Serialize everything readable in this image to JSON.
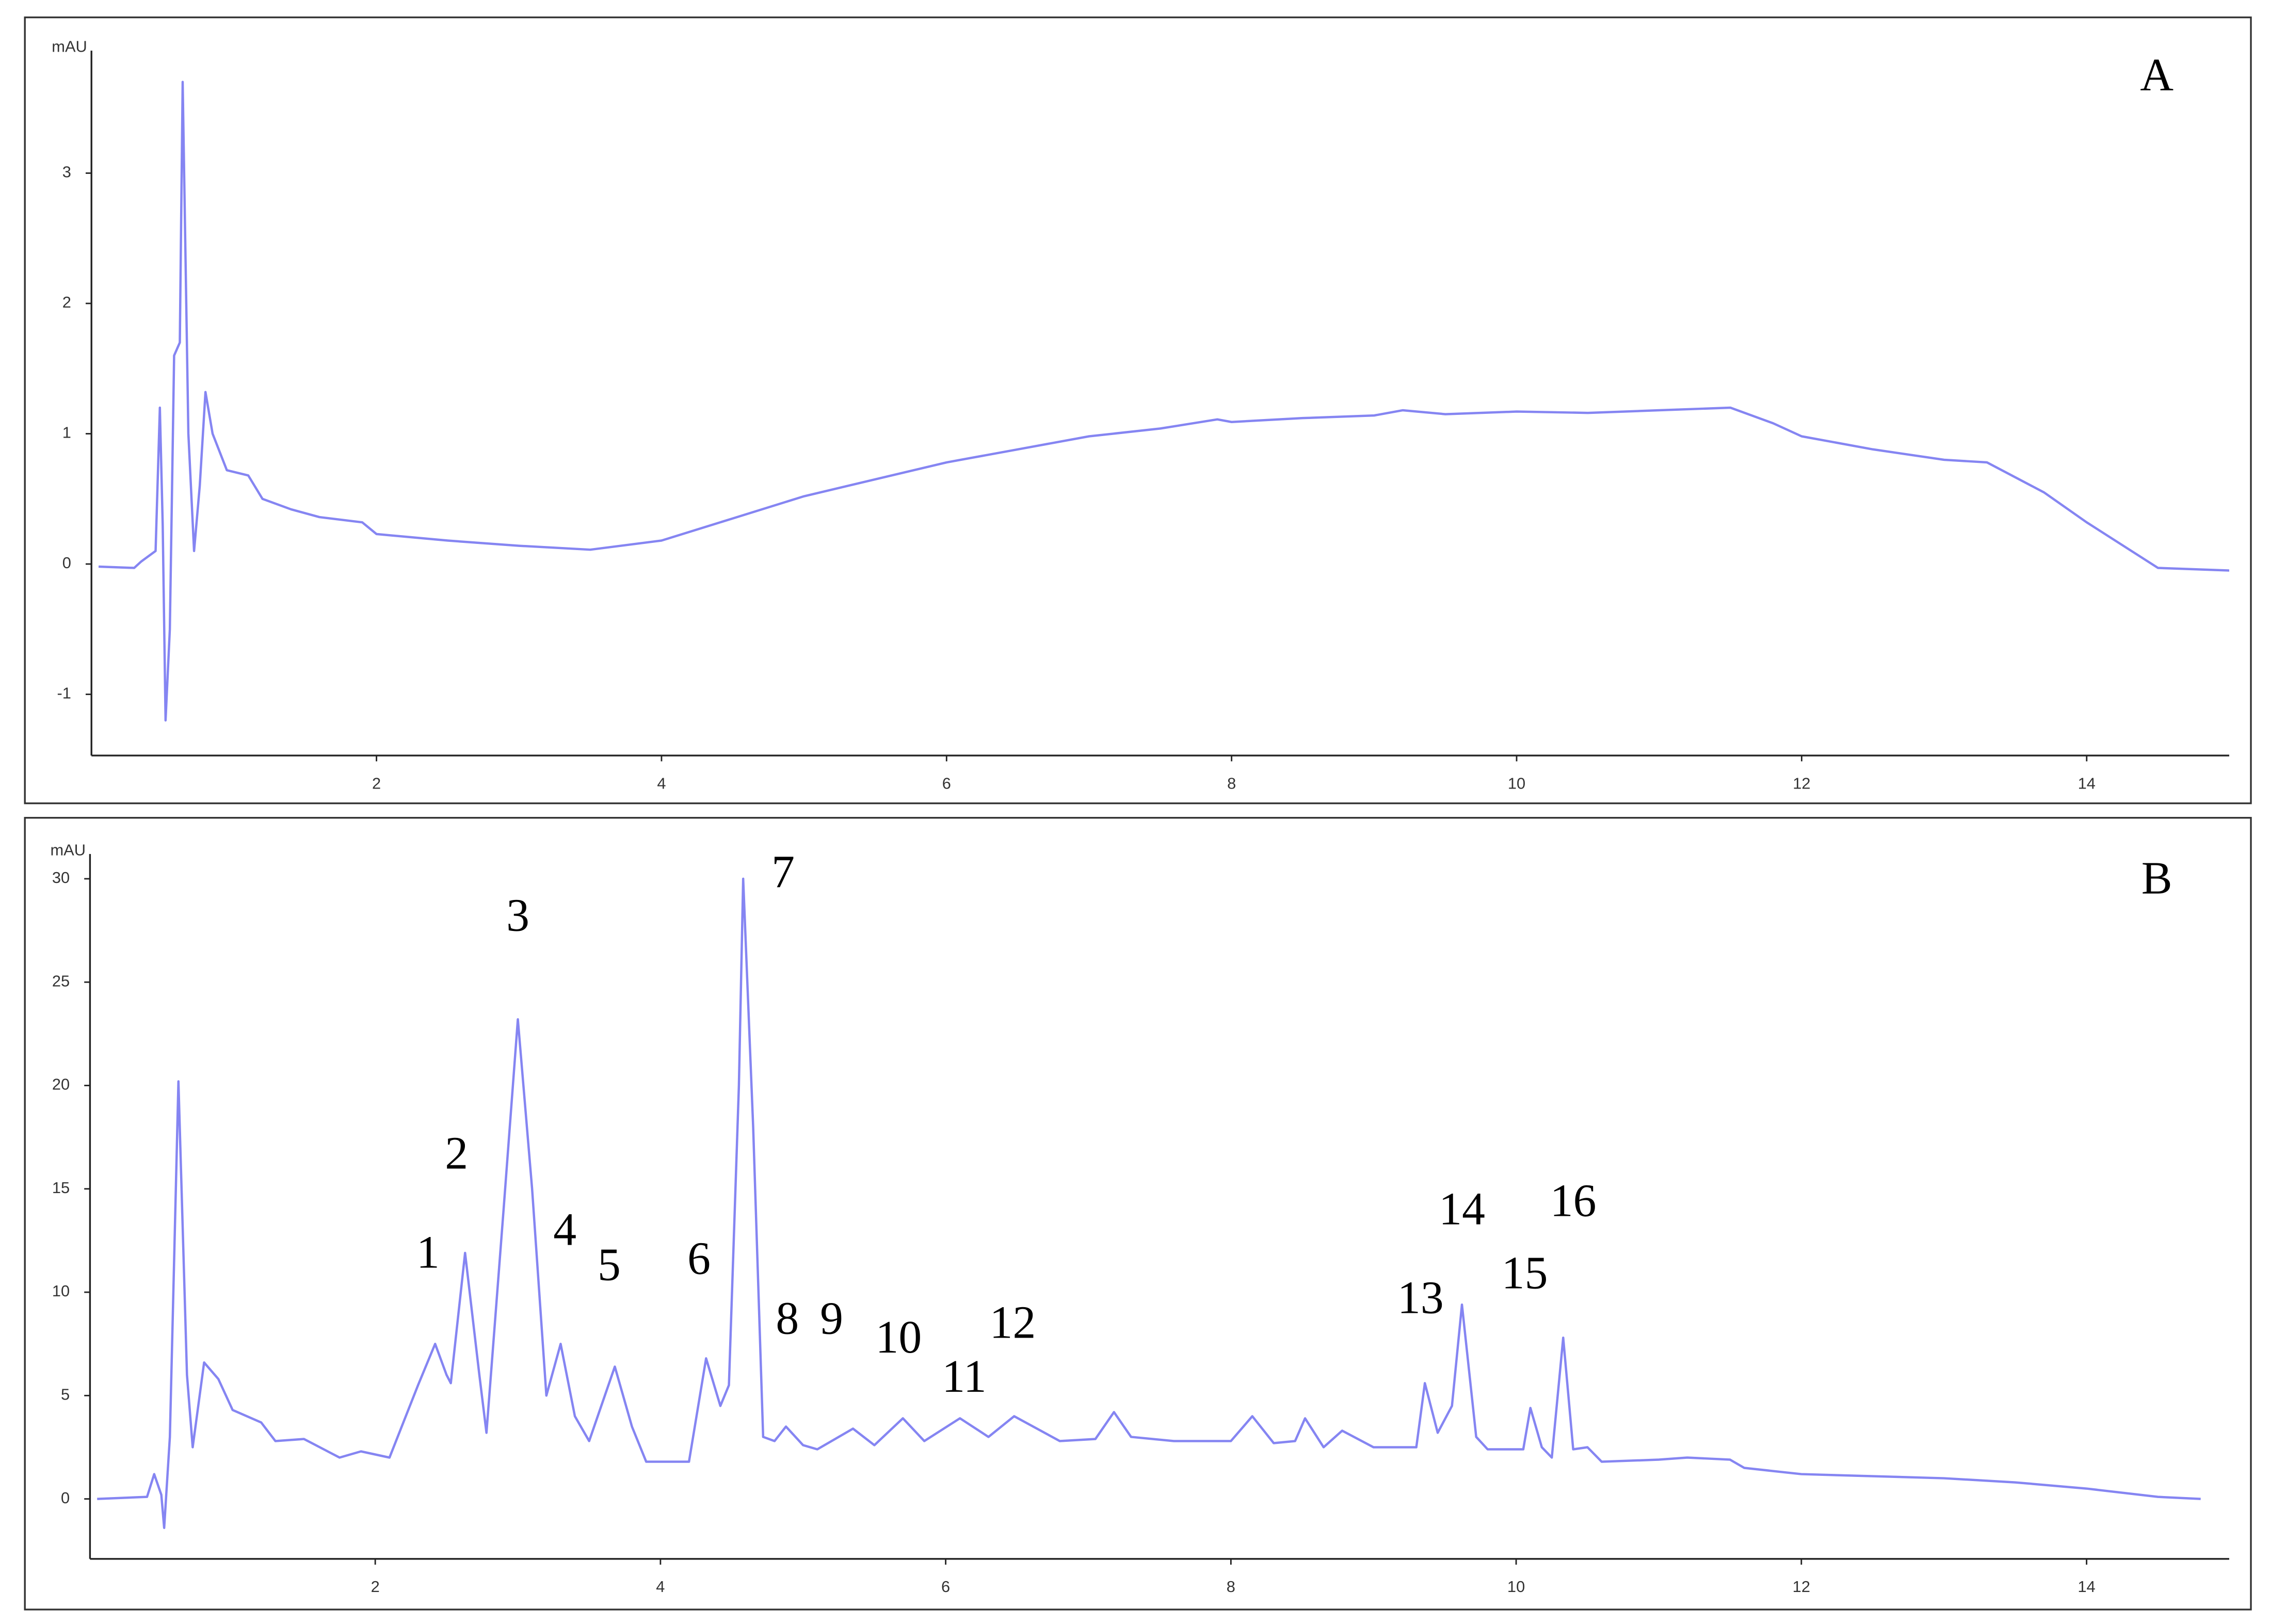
{
  "chart_data": [
    {
      "type": "line",
      "label": "A",
      "y_label": "mAU",
      "color": "#8585f2",
      "grid": false,
      "xlim": [
        0,
        15
      ],
      "ylim": [
        -1.47,
        3.94
      ],
      "xticks": [
        2,
        4,
        6,
        8,
        10,
        12,
        14
      ],
      "yticks": [
        -1,
        0,
        1,
        2,
        3
      ],
      "x": [
        0.05,
        0.3,
        0.35,
        0.45,
        0.48,
        0.5,
        0.52,
        0.55,
        0.58,
        0.62,
        0.64,
        0.68,
        0.72,
        0.76,
        0.8,
        0.85,
        0.95,
        1.1,
        1.2,
        1.4,
        1.6,
        1.9,
        2.0,
        2.5,
        3.0,
        3.5,
        4.0,
        4.5,
        5.0,
        5.5,
        6.0,
        6.5,
        7.0,
        7.5,
        7.9,
        8.0,
        8.5,
        9.0,
        9.2,
        9.5,
        10.0,
        10.5,
        11.0,
        11.5,
        11.8,
        12.0,
        12.5,
        13.0,
        13.3,
        13.7,
        14.0,
        14.5,
        15.0
      ],
      "values": [
        -0.02,
        -0.03,
        0.02,
        0.1,
        1.2,
        0.3,
        -1.2,
        -0.5,
        1.6,
        1.7,
        3.7,
        1.0,
        0.1,
        0.6,
        1.32,
        1.0,
        0.72,
        0.68,
        0.5,
        0.42,
        0.36,
        0.32,
        0.23,
        0.18,
        0.14,
        0.11,
        0.18,
        0.35,
        0.52,
        0.65,
        0.78,
        0.88,
        0.98,
        1.04,
        1.11,
        1.09,
        1.12,
        1.14,
        1.18,
        1.15,
        1.17,
        1.16,
        1.18,
        1.2,
        1.08,
        0.98,
        0.88,
        0.8,
        0.78,
        0.55,
        0.32,
        -0.03,
        -0.05
      ],
      "annotations": []
    },
    {
      "type": "line",
      "label": "B",
      "y_label": "mAU",
      "color": "#8585f2",
      "grid": false,
      "xlim": [
        0,
        15
      ],
      "ylim": [
        -2.9,
        31.2
      ],
      "xticks": [
        2,
        4,
        6,
        8,
        10,
        12,
        14
      ],
      "yticks": [
        0,
        5,
        10,
        15,
        20,
        25,
        30
      ],
      "x": [
        0.05,
        0.4,
        0.45,
        0.5,
        0.52,
        0.56,
        0.62,
        0.68,
        0.72,
        0.8,
        0.9,
        1.0,
        1.2,
        1.3,
        1.5,
        1.75,
        1.9,
        2.1,
        2.3,
        2.42,
        2.5,
        2.53,
        2.63,
        2.73,
        2.78,
        2.9,
        3.0,
        3.1,
        3.2,
        3.3,
        3.4,
        3.5,
        3.68,
        3.8,
        3.9,
        4.2,
        4.32,
        4.42,
        4.48,
        4.55,
        4.58,
        4.65,
        4.72,
        4.8,
        4.88,
        5.0,
        5.1,
        5.35,
        5.5,
        5.7,
        5.85,
        6.1,
        6.3,
        6.48,
        6.8,
        7.05,
        7.18,
        7.3,
        7.6,
        8.0,
        8.15,
        8.3,
        8.45,
        8.52,
        8.65,
        8.78,
        9.0,
        9.3,
        9.36,
        9.45,
        9.55,
        9.62,
        9.72,
        9.8,
        10.05,
        10.1,
        10.18,
        10.25,
        10.33,
        10.4,
        10.5,
        10.6,
        11.0,
        11.2,
        11.5,
        11.6,
        12.0,
        13.0,
        13.5,
        14.0,
        14.5,
        14.8
      ],
      "values": [
        0,
        0.1,
        1.2,
        0.2,
        -1.4,
        3,
        20.2,
        6,
        2.5,
        6.6,
        5.8,
        4.3,
        3.7,
        2.8,
        2.9,
        2,
        2.3,
        2,
        5.5,
        7.5,
        6,
        5.6,
        11.9,
        6,
        3.2,
        14,
        23.2,
        15,
        5,
        7.5,
        4,
        2.8,
        6.4,
        3.5,
        1.8,
        1.8,
        6.8,
        4.5,
        5.5,
        20,
        30,
        18,
        3,
        2.8,
        3.5,
        2.6,
        2.4,
        3.4,
        2.6,
        3.9,
        2.8,
        3.9,
        3.0,
        4.0,
        2.8,
        2.9,
        4.2,
        3.0,
        2.8,
        2.8,
        4.0,
        2.7,
        2.8,
        3.9,
        2.5,
        3.3,
        2.5,
        2.5,
        5.6,
        3.2,
        4.5,
        9.4,
        3,
        2.4,
        2.4,
        4.4,
        2.5,
        2.0,
        7.8,
        2.4,
        2.5,
        1.8,
        1.9,
        2.0,
        1.9,
        1.5,
        1.2,
        1.0,
        0.8,
        0.5,
        0.1,
        0
      ],
      "annotations": [
        {
          "text": "1",
          "x": 2.37,
          "y": 11.7
        },
        {
          "text": "2",
          "x": 2.57,
          "y": 16.5
        },
        {
          "text": "3",
          "x": 3.0,
          "y": 28.0
        },
        {
          "text": "4",
          "x": 3.33,
          "y": 12.8
        },
        {
          "text": "5",
          "x": 3.64,
          "y": 11.1
        },
        {
          "text": "6",
          "x": 4.27,
          "y": 11.4
        },
        {
          "text": "7",
          "x": 4.86,
          "y": 30.1
        },
        {
          "text": "8",
          "x": 4.89,
          "y": 8.5
        },
        {
          "text": "9",
          "x": 5.2,
          "y": 8.5
        },
        {
          "text": "10",
          "x": 5.67,
          "y": 7.6
        },
        {
          "text": "11",
          "x": 6.13,
          "y": 5.7
        },
        {
          "text": "12",
          "x": 6.47,
          "y": 8.3
        },
        {
          "text": "13",
          "x": 9.33,
          "y": 9.5
        },
        {
          "text": "14",
          "x": 9.62,
          "y": 13.8
        },
        {
          "text": "15",
          "x": 10.06,
          "y": 10.7
        },
        {
          "text": "16",
          "x": 10.4,
          "y": 14.2
        }
      ]
    }
  ]
}
